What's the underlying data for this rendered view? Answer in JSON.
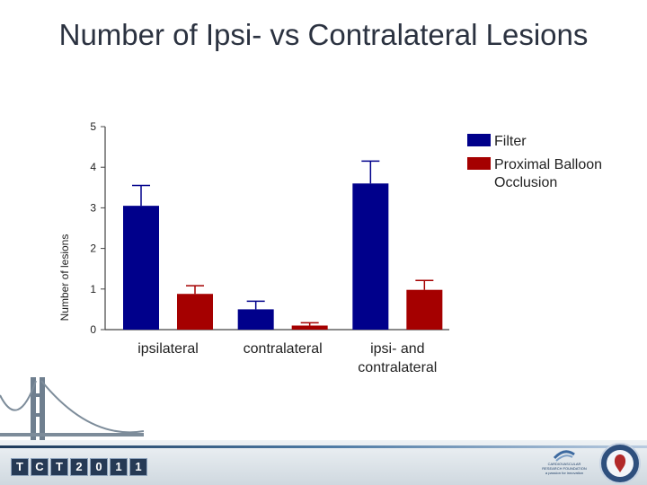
{
  "slide": {
    "title": "Number of Ipsi- vs Contralateral Lesions"
  },
  "chart_data": {
    "type": "bar",
    "title": "Number of Ipsi- vs Contralateral Lesions",
    "ylabel": "Number of lesions",
    "xlabel": "",
    "ylim": [
      0,
      5
    ],
    "yticks": [
      0,
      1,
      2,
      3,
      4,
      5
    ],
    "categories": [
      "ipsilateral",
      "contralateral",
      "ipsi- and contralateral"
    ],
    "series": [
      {
        "name": "Filter",
        "color": "#00008b",
        "values": [
          3.05,
          0.5,
          3.6
        ],
        "errors": [
          0.5,
          0.2,
          0.55
        ]
      },
      {
        "name": "Proximal Balloon Occlusion",
        "color": "#a50000",
        "values": [
          0.88,
          0.1,
          0.98
        ],
        "errors": [
          0.2,
          0.07,
          0.23
        ]
      }
    ],
    "legend_position": "top-right",
    "grid": false
  },
  "footer": {
    "logo_letters": [
      "T",
      "C",
      "T",
      "2",
      "0",
      "1",
      "1"
    ],
    "org_line1": "CARDIOVASCULAR",
    "org_line2": "RESEARCH FOUNDATION",
    "org_tagline": "a passion for innovation"
  }
}
